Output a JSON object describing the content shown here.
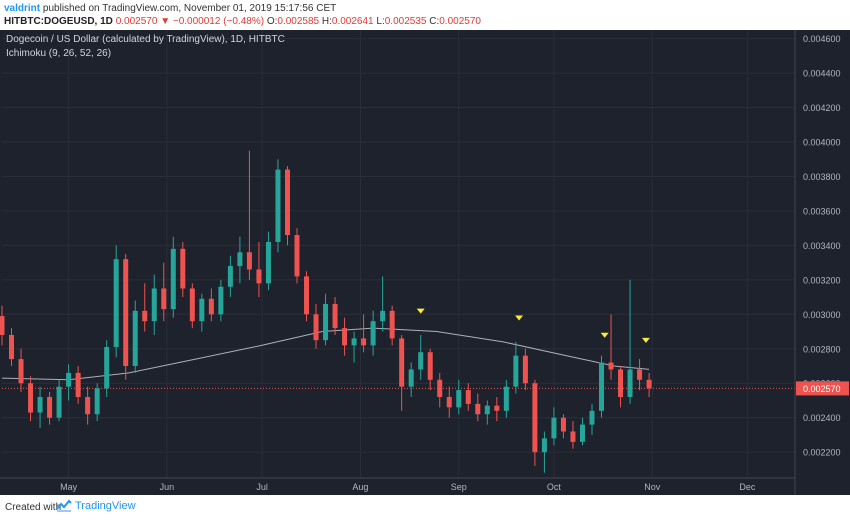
{
  "header": {
    "author": "valdrint",
    "published_text": "published on TradingView.com, November 01, 2019 15:17:56 CET",
    "symbol": "HITBTC:DOGEUSD, 1D",
    "last": "0.002570",
    "change_arrow": "▼",
    "change": "−0.000012 (−0.48%)",
    "o_label": "O:",
    "o": "0.002585",
    "h_label": "H:",
    "h": "0.002641",
    "l_label": "L:",
    "l": "0.002535",
    "c_label": "C:",
    "c": "0.002570"
  },
  "legend": {
    "title": "Dogecoin / US Dollar (calculated by TradingView), 1D, HITBTC",
    "indicator": "Ichimoku (9, 26, 52, 26)"
  },
  "footer": {
    "created_with": "Created with",
    "brand": "TradingView"
  },
  "colors": {
    "background": "#1e222d",
    "up": "#26a69a",
    "down": "#ef5350",
    "baseline": "#d1d4dc",
    "marker": "#ffeb3b",
    "price_line": "#ef5350",
    "price_tag": "#ef5350"
  },
  "chart_data": {
    "type": "candlestick",
    "y_ticks": [
      "0.004600",
      "0.004400",
      "0.004200",
      "0.004000",
      "0.003800",
      "0.003600",
      "0.003400",
      "0.003200",
      "0.003000",
      "0.002800",
      "0.002600",
      "0.002400",
      "0.002200"
    ],
    "x_ticks": [
      {
        "label": "May",
        "date": "2019-05-01"
      },
      {
        "label": "Jun",
        "date": "2019-06-01"
      },
      {
        "label": "Jul",
        "date": "2019-07-01"
      },
      {
        "label": "Aug",
        "date": "2019-08-01"
      },
      {
        "label": "Sep",
        "date": "2019-09-01"
      },
      {
        "label": "Oct",
        "date": "2019-10-01"
      },
      {
        "label": "Nov",
        "date": "2019-11-01"
      },
      {
        "label": "Dec",
        "date": "2019-12-01"
      }
    ],
    "x_range": [
      "2019-04-10",
      "2019-12-16"
    ],
    "y_range": [
      0.00205,
      0.00465
    ],
    "current_price": "0.002570",
    "markers": [
      {
        "date": "2019-08-20",
        "price": 0.00301
      },
      {
        "date": "2019-09-20",
        "price": 0.00297
      },
      {
        "date": "2019-10-17",
        "price": 0.00287
      },
      {
        "date": "2019-10-30",
        "price": 0.00284
      }
    ],
    "candles": [
      {
        "date": "2019-04-10",
        "o": 0.00299,
        "h": 0.00305,
        "l": 0.00282,
        "c": 0.00288
      },
      {
        "date": "2019-04-13",
        "o": 0.00288,
        "h": 0.00292,
        "l": 0.0027,
        "c": 0.00274
      },
      {
        "date": "2019-04-16",
        "o": 0.00274,
        "h": 0.0028,
        "l": 0.00255,
        "c": 0.0026
      },
      {
        "date": "2019-04-19",
        "o": 0.0026,
        "h": 0.00264,
        "l": 0.00238,
        "c": 0.00243
      },
      {
        "date": "2019-04-22",
        "o": 0.00243,
        "h": 0.00258,
        "l": 0.00234,
        "c": 0.00252
      },
      {
        "date": "2019-04-25",
        "o": 0.00252,
        "h": 0.00255,
        "l": 0.00236,
        "c": 0.0024
      },
      {
        "date": "2019-04-28",
        "o": 0.0024,
        "h": 0.00262,
        "l": 0.00238,
        "c": 0.00258
      },
      {
        "date": "2019-05-01",
        "o": 0.00258,
        "h": 0.00271,
        "l": 0.0025,
        "c": 0.00266
      },
      {
        "date": "2019-05-04",
        "o": 0.00266,
        "h": 0.0027,
        "l": 0.00248,
        "c": 0.00252
      },
      {
        "date": "2019-05-07",
        "o": 0.00252,
        "h": 0.00258,
        "l": 0.00236,
        "c": 0.00242
      },
      {
        "date": "2019-05-10",
        "o": 0.00242,
        "h": 0.0026,
        "l": 0.00238,
        "c": 0.00257
      },
      {
        "date": "2019-05-13",
        "o": 0.00257,
        "h": 0.00285,
        "l": 0.00252,
        "c": 0.00281
      },
      {
        "date": "2019-05-16",
        "o": 0.00281,
        "h": 0.0034,
        "l": 0.00275,
        "c": 0.00332
      },
      {
        "date": "2019-05-19",
        "o": 0.00332,
        "h": 0.00335,
        "l": 0.00262,
        "c": 0.0027
      },
      {
        "date": "2019-05-22",
        "o": 0.0027,
        "h": 0.00308,
        "l": 0.00266,
        "c": 0.00302
      },
      {
        "date": "2019-05-25",
        "o": 0.00302,
        "h": 0.00318,
        "l": 0.0029,
        "c": 0.00296
      },
      {
        "date": "2019-05-28",
        "o": 0.00296,
        "h": 0.00323,
        "l": 0.00288,
        "c": 0.00315
      },
      {
        "date": "2019-05-31",
        "o": 0.00315,
        "h": 0.0033,
        "l": 0.00296,
        "c": 0.00303
      },
      {
        "date": "2019-06-03",
        "o": 0.00303,
        "h": 0.00345,
        "l": 0.00298,
        "c": 0.00338
      },
      {
        "date": "2019-06-06",
        "o": 0.00338,
        "h": 0.00342,
        "l": 0.0031,
        "c": 0.00315
      },
      {
        "date": "2019-06-09",
        "o": 0.00315,
        "h": 0.00318,
        "l": 0.00292,
        "c": 0.00296
      },
      {
        "date": "2019-06-12",
        "o": 0.00296,
        "h": 0.00312,
        "l": 0.0029,
        "c": 0.00309
      },
      {
        "date": "2019-06-15",
        "o": 0.00309,
        "h": 0.00315,
        "l": 0.00296,
        "c": 0.003
      },
      {
        "date": "2019-06-18",
        "o": 0.003,
        "h": 0.0032,
        "l": 0.00296,
        "c": 0.00316
      },
      {
        "date": "2019-06-21",
        "o": 0.00316,
        "h": 0.00334,
        "l": 0.0031,
        "c": 0.00328
      },
      {
        "date": "2019-06-24",
        "o": 0.00328,
        "h": 0.00345,
        "l": 0.00318,
        "c": 0.00336
      },
      {
        "date": "2019-06-27",
        "o": 0.00336,
        "h": 0.00395,
        "l": 0.0032,
        "c": 0.00326
      },
      {
        "date": "2019-06-30",
        "o": 0.00326,
        "h": 0.00342,
        "l": 0.0031,
        "c": 0.00318
      },
      {
        "date": "2019-07-03",
        "o": 0.00318,
        "h": 0.00348,
        "l": 0.00314,
        "c": 0.00342
      },
      {
        "date": "2019-07-06",
        "o": 0.00342,
        "h": 0.0039,
        "l": 0.00336,
        "c": 0.00384
      },
      {
        "date": "2019-07-09",
        "o": 0.00384,
        "h": 0.00386,
        "l": 0.0034,
        "c": 0.00346
      },
      {
        "date": "2019-07-12",
        "o": 0.00346,
        "h": 0.0035,
        "l": 0.00318,
        "c": 0.00322
      },
      {
        "date": "2019-07-15",
        "o": 0.00322,
        "h": 0.00325,
        "l": 0.00296,
        "c": 0.003
      },
      {
        "date": "2019-07-18",
        "o": 0.003,
        "h": 0.00306,
        "l": 0.0028,
        "c": 0.00285
      },
      {
        "date": "2019-07-21",
        "o": 0.00285,
        "h": 0.00312,
        "l": 0.00282,
        "c": 0.00306
      },
      {
        "date": "2019-07-24",
        "o": 0.00306,
        "h": 0.0031,
        "l": 0.00288,
        "c": 0.00292
      },
      {
        "date": "2019-07-27",
        "o": 0.00292,
        "h": 0.00298,
        "l": 0.00276,
        "c": 0.00282
      },
      {
        "date": "2019-07-30",
        "o": 0.00282,
        "h": 0.0029,
        "l": 0.00272,
        "c": 0.00286
      },
      {
        "date": "2019-08-02",
        "o": 0.00286,
        "h": 0.003,
        "l": 0.00278,
        "c": 0.00282
      },
      {
        "date": "2019-08-05",
        "o": 0.00282,
        "h": 0.00302,
        "l": 0.00276,
        "c": 0.00296
      },
      {
        "date": "2019-08-08",
        "o": 0.00296,
        "h": 0.00322,
        "l": 0.0029,
        "c": 0.00302
      },
      {
        "date": "2019-08-11",
        "o": 0.00302,
        "h": 0.00305,
        "l": 0.00282,
        "c": 0.00286
      },
      {
        "date": "2019-08-14",
        "o": 0.00286,
        "h": 0.00288,
        "l": 0.00244,
        "c": 0.00258
      },
      {
        "date": "2019-08-17",
        "o": 0.00258,
        "h": 0.00272,
        "l": 0.00252,
        "c": 0.00268
      },
      {
        "date": "2019-08-20",
        "o": 0.00268,
        "h": 0.00288,
        "l": 0.00262,
        "c": 0.00278
      },
      {
        "date": "2019-08-23",
        "o": 0.00278,
        "h": 0.0028,
        "l": 0.00256,
        "c": 0.00262
      },
      {
        "date": "2019-08-26",
        "o": 0.00262,
        "h": 0.00266,
        "l": 0.00246,
        "c": 0.00252
      },
      {
        "date": "2019-08-29",
        "o": 0.00252,
        "h": 0.00258,
        "l": 0.0024,
        "c": 0.00246
      },
      {
        "date": "2019-09-01",
        "o": 0.00246,
        "h": 0.00262,
        "l": 0.00242,
        "c": 0.00256
      },
      {
        "date": "2019-09-04",
        "o": 0.00256,
        "h": 0.0026,
        "l": 0.00244,
        "c": 0.00248
      },
      {
        "date": "2019-09-07",
        "o": 0.00248,
        "h": 0.00254,
        "l": 0.00238,
        "c": 0.00242
      },
      {
        "date": "2019-09-10",
        "o": 0.00242,
        "h": 0.0025,
        "l": 0.00236,
        "c": 0.00247
      },
      {
        "date": "2019-09-13",
        "o": 0.00247,
        "h": 0.00252,
        "l": 0.00238,
        "c": 0.00244
      },
      {
        "date": "2019-09-16",
        "o": 0.00244,
        "h": 0.00262,
        "l": 0.0024,
        "c": 0.00258
      },
      {
        "date": "2019-09-19",
        "o": 0.00258,
        "h": 0.00284,
        "l": 0.00254,
        "c": 0.00276
      },
      {
        "date": "2019-09-22",
        "o": 0.00276,
        "h": 0.0028,
        "l": 0.00256,
        "c": 0.0026
      },
      {
        "date": "2019-09-25",
        "o": 0.0026,
        "h": 0.00262,
        "l": 0.00212,
        "c": 0.0022
      },
      {
        "date": "2019-09-28",
        "o": 0.0022,
        "h": 0.00232,
        "l": 0.00208,
        "c": 0.00228
      },
      {
        "date": "2019-10-01",
        "o": 0.00228,
        "h": 0.00246,
        "l": 0.00224,
        "c": 0.0024
      },
      {
        "date": "2019-10-04",
        "o": 0.0024,
        "h": 0.00242,
        "l": 0.00228,
        "c": 0.00232
      },
      {
        "date": "2019-10-07",
        "o": 0.00232,
        "h": 0.00238,
        "l": 0.00222,
        "c": 0.00226
      },
      {
        "date": "2019-10-10",
        "o": 0.00226,
        "h": 0.0024,
        "l": 0.00224,
        "c": 0.00236
      },
      {
        "date": "2019-10-13",
        "o": 0.00236,
        "h": 0.00248,
        "l": 0.0023,
        "c": 0.00244
      },
      {
        "date": "2019-10-16",
        "o": 0.00244,
        "h": 0.00276,
        "l": 0.0024,
        "c": 0.00272
      },
      {
        "date": "2019-10-19",
        "o": 0.00272,
        "h": 0.003,
        "l": 0.00262,
        "c": 0.00268
      },
      {
        "date": "2019-10-22",
        "o": 0.00268,
        "h": 0.0027,
        "l": 0.00246,
        "c": 0.00252
      },
      {
        "date": "2019-10-25",
        "o": 0.00252,
        "h": 0.0032,
        "l": 0.00248,
        "c": 0.00268
      },
      {
        "date": "2019-10-28",
        "o": 0.00268,
        "h": 0.00274,
        "l": 0.00256,
        "c": 0.00262
      },
      {
        "date": "2019-10-31",
        "o": 0.00262,
        "h": 0.00266,
        "l": 0.00252,
        "c": 0.00257
      }
    ],
    "baseline": [
      {
        "date": "2019-04-10",
        "v": 0.00263
      },
      {
        "date": "2019-05-01",
        "v": 0.00262
      },
      {
        "date": "2019-05-20",
        "v": 0.00266
      },
      {
        "date": "2019-06-10",
        "v": 0.00274
      },
      {
        "date": "2019-07-01",
        "v": 0.00282
      },
      {
        "date": "2019-07-20",
        "v": 0.0029
      },
      {
        "date": "2019-08-05",
        "v": 0.00292
      },
      {
        "date": "2019-08-25",
        "v": 0.0029
      },
      {
        "date": "2019-09-15",
        "v": 0.00284
      },
      {
        "date": "2019-10-05",
        "v": 0.00276
      },
      {
        "date": "2019-10-20",
        "v": 0.0027
      },
      {
        "date": "2019-10-31",
        "v": 0.00268
      }
    ]
  }
}
